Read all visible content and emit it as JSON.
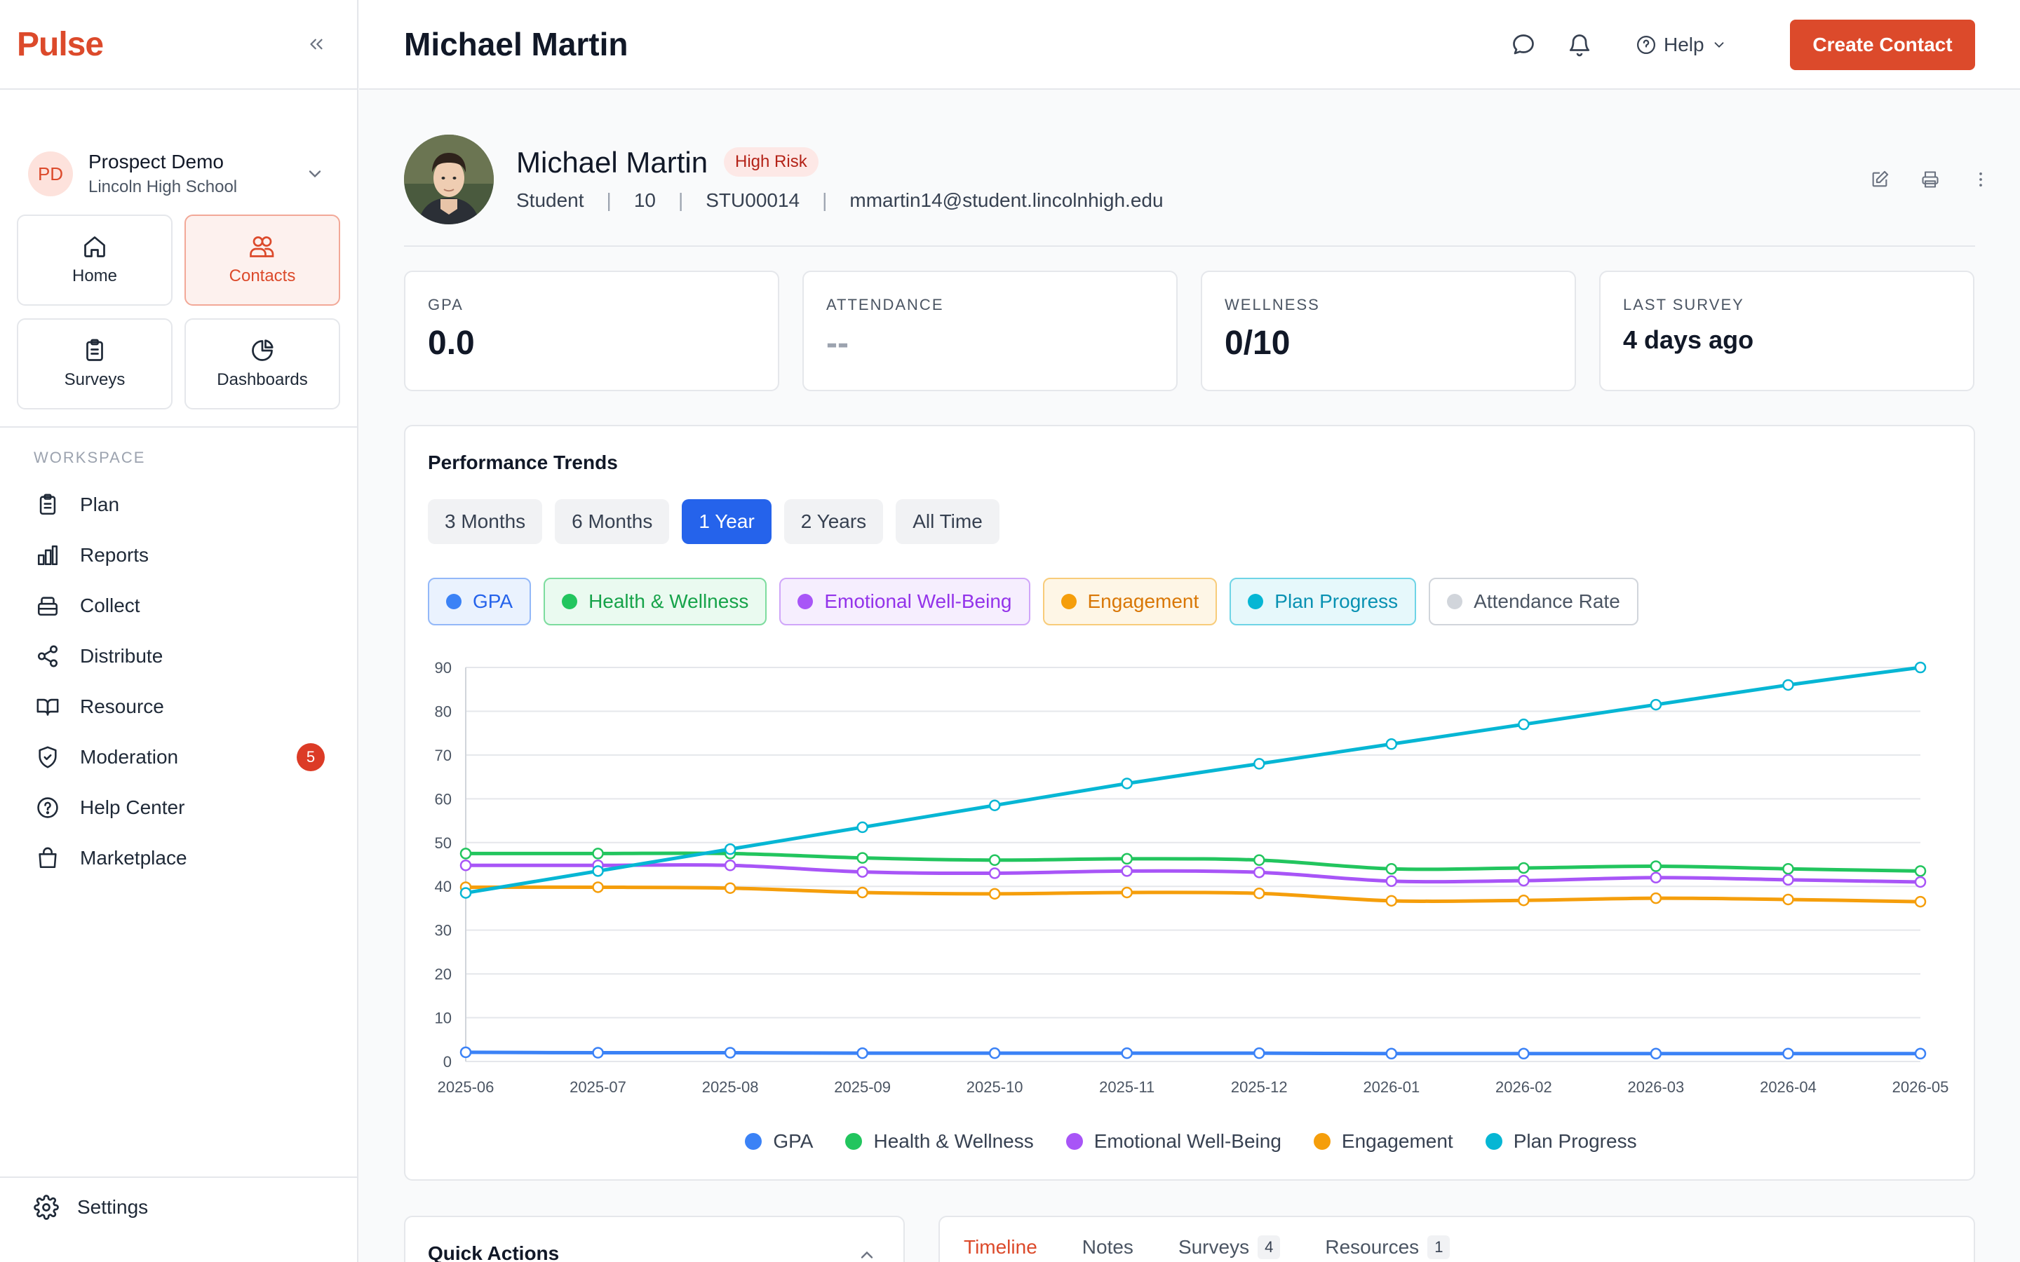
{
  "app": {
    "brand": "Pulse"
  },
  "org": {
    "initials": "PD",
    "name": "Prospect Demo",
    "school": "Lincoln High School"
  },
  "tiles": [
    {
      "label": "Home",
      "icon": "home-icon"
    },
    {
      "label": "Contacts",
      "icon": "contacts-icon",
      "active": true
    },
    {
      "label": "Surveys",
      "icon": "clipboard-icon"
    },
    {
      "label": "Dashboards",
      "icon": "pie-chart-icon"
    }
  ],
  "workspace": {
    "label": "WORKSPACE",
    "items": [
      {
        "label": "Plan",
        "icon": "clipboard-list-icon"
      },
      {
        "label": "Reports",
        "icon": "bar-chart-icon"
      },
      {
        "label": "Collect",
        "icon": "inbox-icon"
      },
      {
        "label": "Distribute",
        "icon": "share-icon"
      },
      {
        "label": "Resource",
        "icon": "book-icon"
      },
      {
        "label": "Moderation",
        "icon": "shield-icon",
        "badge": "5"
      },
      {
        "label": "Help Center",
        "icon": "help-circle-icon"
      },
      {
        "label": "Marketplace",
        "icon": "shopping-bag-icon"
      }
    ]
  },
  "settings": {
    "label": "Settings"
  },
  "topbar": {
    "title": "Michael Martin",
    "help_label": "Help",
    "create_label": "Create Contact"
  },
  "profile": {
    "name": "Michael Martin",
    "risk": "High Risk",
    "role": "Student",
    "grade": "10",
    "student_id": "STU00014",
    "email": "mmartin14@student.lincolnhigh.edu",
    "sep": "|"
  },
  "stats": [
    {
      "label": "GPA",
      "value": "0.0"
    },
    {
      "label": "ATTENDANCE",
      "value": "--"
    },
    {
      "label": "WELLNESS",
      "value": "0/10"
    },
    {
      "label": "LAST SURVEY",
      "value": "4 days ago"
    }
  ],
  "trends": {
    "title": "Performance Trends",
    "ranges": [
      "3 Months",
      "6 Months",
      "1 Year",
      "2 Years",
      "All Time"
    ],
    "active_range": "1 Year",
    "toggles": [
      {
        "label": "GPA",
        "color": "#3b82f6",
        "bg": "#eaf2fe",
        "border": "#93b8f8",
        "text": "#2563eb",
        "on": true
      },
      {
        "label": "Health & Wellness",
        "color": "#22c55e",
        "bg": "#eafaf0",
        "border": "#7ddc9e",
        "text": "#16a34a",
        "on": true
      },
      {
        "label": "Emotional Well-Being",
        "color": "#a855f7",
        "bg": "#f6eefe",
        "border": "#d0a6f9",
        "text": "#9333ea",
        "on": true
      },
      {
        "label": "Engagement",
        "color": "#f59e0b",
        "bg": "#fef6e6",
        "border": "#f8cc7a",
        "text": "#d97706",
        "on": true
      },
      {
        "label": "Plan Progress",
        "color": "#06b6d4",
        "bg": "#e6f8fb",
        "border": "#6fd4e6",
        "text": "#0891b2",
        "on": true
      },
      {
        "label": "Attendance Rate",
        "color": "#d1d5db",
        "bg": "#ffffff",
        "border": "#d1d5db",
        "text": "#4b5563",
        "on": false
      }
    ]
  },
  "chart_data": {
    "type": "line",
    "x": [
      "2025-06",
      "2025-07",
      "2025-08",
      "2025-09",
      "2025-10",
      "2025-11",
      "2025-12",
      "2026-01",
      "2026-02",
      "2026-03",
      "2026-04",
      "2026-05"
    ],
    "ylim": [
      0,
      90
    ],
    "yticks": [
      0,
      10,
      20,
      30,
      40,
      50,
      60,
      70,
      80,
      90
    ],
    "grid": true,
    "legend": "bottom",
    "series": [
      {
        "name": "GPA",
        "color": "#3b82f6",
        "values": [
          2.1,
          2.0,
          2.0,
          1.9,
          1.9,
          1.9,
          1.9,
          1.8,
          1.8,
          1.8,
          1.8,
          1.8
        ]
      },
      {
        "name": "Health & Wellness",
        "color": "#22c55e",
        "values": [
          47.5,
          47.5,
          47.5,
          46.5,
          46.0,
          46.3,
          46.0,
          44.0,
          44.2,
          44.6,
          44.0,
          43.5
        ]
      },
      {
        "name": "Emotional Well-Being",
        "color": "#a855f7",
        "values": [
          44.8,
          44.8,
          44.8,
          43.3,
          43.0,
          43.5,
          43.2,
          41.2,
          41.3,
          42.0,
          41.5,
          41.0
        ]
      },
      {
        "name": "Engagement",
        "color": "#f59e0b",
        "values": [
          39.8,
          39.8,
          39.6,
          38.6,
          38.3,
          38.6,
          38.4,
          36.7,
          36.8,
          37.3,
          37.0,
          36.5
        ]
      },
      {
        "name": "Plan Progress",
        "color": "#06b6d4",
        "values": [
          38.5,
          43.5,
          48.5,
          53.5,
          58.5,
          63.5,
          68.0,
          72.5,
          77.0,
          81.5,
          86.0,
          90.0
        ]
      }
    ]
  },
  "quick_actions": {
    "title": "Quick Actions"
  },
  "tabs": [
    {
      "label": "Timeline",
      "active": true
    },
    {
      "label": "Notes"
    },
    {
      "label": "Surveys",
      "count": "4"
    },
    {
      "label": "Resources",
      "count": "1"
    }
  ]
}
